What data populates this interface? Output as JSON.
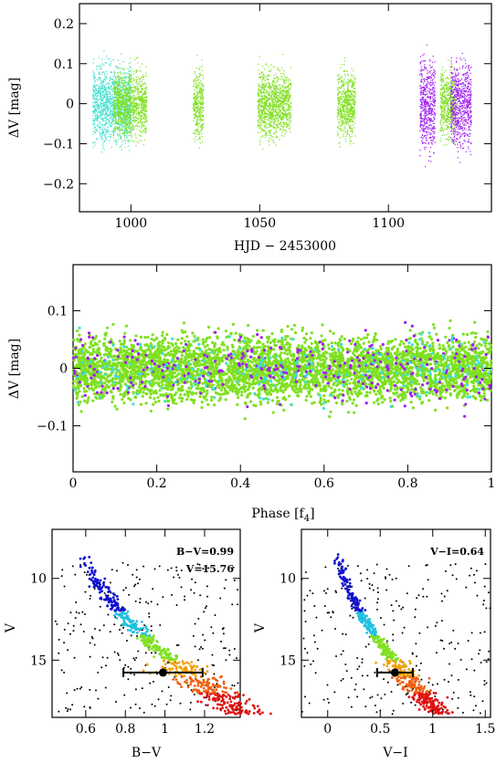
{
  "chart_data": [
    {
      "type": "scatter",
      "xlabel": "HJD − 2453000",
      "ylabel": "ΔV [mag]",
      "xlim": [
        980,
        1140
      ],
      "ylim": [
        0.25,
        -0.27
      ],
      "x_ticks": [
        1000,
        1050,
        1100
      ],
      "y_ticks": [
        -0.2,
        -0.1,
        0,
        0.1,
        0.2
      ],
      "y_tick_labels": [
        "−0.2",
        "−0.1",
        "0",
        "0.1",
        "0.2"
      ],
      "series": [
        {
          "color": "#40e0d0",
          "segments": [
            [
              985,
              1000
            ]
          ],
          "amplitude": 0.2
        },
        {
          "color": "#7fe020",
          "segments": [
            [
              993,
              1006
            ],
            [
              1024,
              1028
            ],
            [
              1049,
              1062
            ],
            [
              1080,
              1087
            ],
            [
              1120,
              1126
            ]
          ],
          "amplitude": 0.18
        },
        {
          "color": "#a020f0",
          "segments": [
            [
              1112,
              1118
            ],
            [
              1124,
              1132
            ]
          ],
          "amplitude": 0.24
        }
      ]
    },
    {
      "type": "scatter",
      "xlabel": "Phase [f",
      "xlabel_sub": "4",
      "xlabel_end": "]",
      "ylabel": "ΔV [mag]",
      "xlim": [
        0,
        1
      ],
      "ylim": [
        0.18,
        -0.18
      ],
      "x_ticks": [
        0,
        0.2,
        0.4,
        0.6,
        0.8,
        1
      ],
      "x_tick_labels": [
        "0",
        "0.2",
        "0.4",
        "0.6",
        "0.8",
        "1"
      ],
      "y_ticks": [
        -0.1,
        0,
        0.1
      ],
      "y_tick_labels": [
        "−0.1",
        "0",
        "0.1"
      ],
      "series": [
        {
          "color": "#7fe020",
          "count": 4200
        },
        {
          "color": "#a020f0",
          "count": 320
        },
        {
          "color": "#40e0d0",
          "count": 220
        }
      ]
    },
    {
      "type": "scatter",
      "xlabel": "B−V",
      "ylabel": "V",
      "xlim": [
        0.43,
        1.38
      ],
      "ylim": [
        7,
        18.5
      ],
      "x_ticks": [
        0.6,
        0.8,
        1,
        1.2
      ],
      "x_tick_labels": [
        "0.6",
        "0.8",
        "1",
        "1.2"
      ],
      "y_ticks": [
        10,
        15
      ],
      "annotations": [
        "B−V=0.99",
        "V=15.76"
      ],
      "star": {
        "x": 0.99,
        "y": 15.76,
        "xerr": 0.2
      },
      "sequence_start": 0.6,
      "sequence_slope": 0.075
    },
    {
      "type": "scatter",
      "xlabel": "V−I",
      "ylabel": "V",
      "xlim": [
        -0.25,
        1.55
      ],
      "ylim": [
        7,
        18.5
      ],
      "x_ticks": [
        0,
        0.5,
        1,
        1.5
      ],
      "x_tick_labels": [
        "0",
        "0.5",
        "1",
        "1.5"
      ],
      "y_ticks": [
        10,
        15
      ],
      "annotations": [
        "V−I=0.64"
      ],
      "star": {
        "x": 0.64,
        "y": 15.76,
        "xerr": 0.17
      },
      "sequence_start": 0.1,
      "sequence_slope": 0.09
    }
  ]
}
